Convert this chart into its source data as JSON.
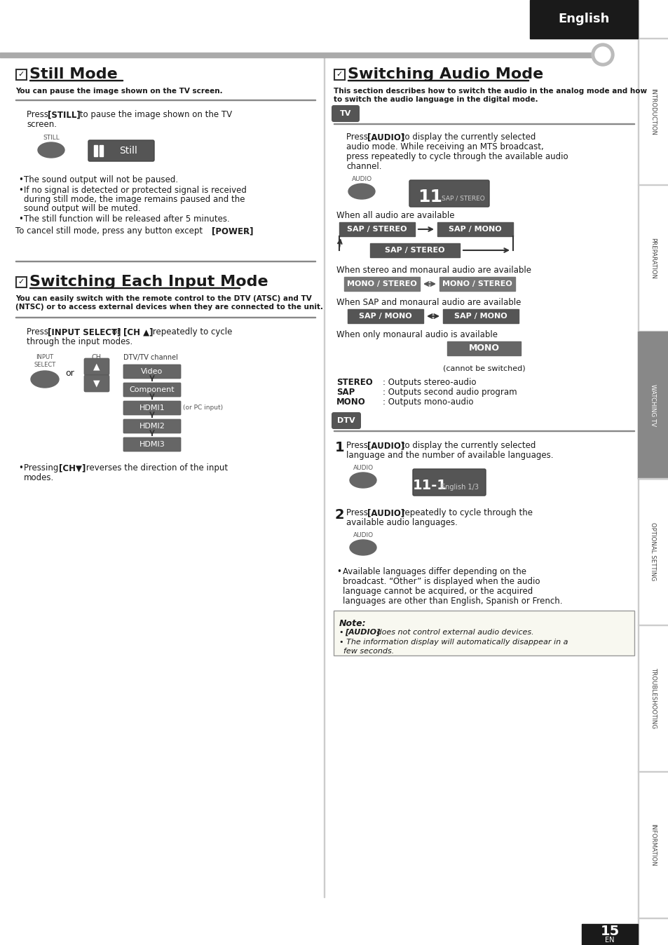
{
  "page_num": "15",
  "bg_color": "#ffffff",
  "sidebar_labels": [
    "INTRODUCTION",
    "PREPARATION",
    "WATCHING TV",
    "OPTIONAL SETTING",
    "TROUBLESHOOTING",
    "INFORMATION"
  ],
  "watching_tv_idx": 2
}
